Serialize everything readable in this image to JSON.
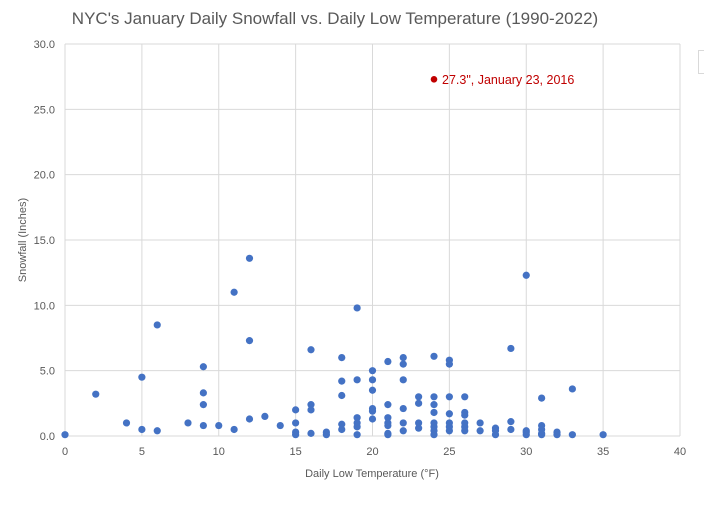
{
  "chart_data": {
    "type": "scatter",
    "title": "NYC's January Daily Snowfall vs.  Daily Low Temperature (1990-2022)",
    "xlabel": "Daily Low Temperature  (°F)",
    "ylabel": "Snowfall (Inches)",
    "xlim": [
      0,
      40
    ],
    "ylim": [
      0,
      30
    ],
    "x_ticks": [
      0,
      5,
      10,
      15,
      20,
      25,
      30,
      35,
      40
    ],
    "y_ticks": [
      0,
      5,
      10,
      15,
      20,
      25,
      30
    ],
    "x_tick_labels": [
      "0",
      "5",
      "10",
      "15",
      "20",
      "25",
      "30",
      "35",
      "40"
    ],
    "y_tick_labels": [
      "0.0",
      "5.0",
      "10.0",
      "15.0",
      "20.0",
      "25.0",
      "30.0"
    ],
    "grid": true,
    "series_color": "#4472C4",
    "points": [
      [
        0,
        0.1
      ],
      [
        2,
        3.2
      ],
      [
        4,
        1.0
      ],
      [
        5,
        4.5
      ],
      [
        5,
        0.5
      ],
      [
        6,
        8.5
      ],
      [
        6,
        0.4
      ],
      [
        8,
        1.0
      ],
      [
        9,
        5.3
      ],
      [
        9,
        3.3
      ],
      [
        9,
        2.4
      ],
      [
        9,
        0.8
      ],
      [
        10,
        0.8
      ],
      [
        11,
        11.0
      ],
      [
        11,
        0.5
      ],
      [
        12,
        13.6
      ],
      [
        12,
        7.3
      ],
      [
        12,
        1.3
      ],
      [
        13,
        1.5
      ],
      [
        14,
        0.8
      ],
      [
        15,
        2.0
      ],
      [
        15,
        1.0
      ],
      [
        15,
        0.3
      ],
      [
        15,
        0.1
      ],
      [
        16,
        6.6
      ],
      [
        16,
        2.4
      ],
      [
        16,
        2.0
      ],
      [
        16,
        0.2
      ],
      [
        17,
        0.3
      ],
      [
        17,
        0.1
      ],
      [
        18,
        6.0
      ],
      [
        18,
        4.2
      ],
      [
        18,
        3.1
      ],
      [
        18,
        0.9
      ],
      [
        18,
        0.5
      ],
      [
        19,
        9.8
      ],
      [
        19,
        4.3
      ],
      [
        19,
        1.4
      ],
      [
        19,
        1.0
      ],
      [
        19,
        0.7
      ],
      [
        19,
        0.1
      ],
      [
        20,
        5.0
      ],
      [
        20,
        4.3
      ],
      [
        20,
        3.5
      ],
      [
        20,
        2.1
      ],
      [
        20,
        1.9
      ],
      [
        20,
        1.3
      ],
      [
        21,
        5.7
      ],
      [
        21,
        2.4
      ],
      [
        21,
        1.4
      ],
      [
        21,
        1.0
      ],
      [
        21,
        0.8
      ],
      [
        21,
        0.2
      ],
      [
        21,
        0.1
      ],
      [
        22,
        6.0
      ],
      [
        22,
        5.5
      ],
      [
        22,
        4.3
      ],
      [
        22,
        2.1
      ],
      [
        22,
        1.0
      ],
      [
        22,
        0.4
      ],
      [
        23,
        3.0
      ],
      [
        23,
        2.5
      ],
      [
        23,
        1.0
      ],
      [
        23,
        0.6
      ],
      [
        24,
        6.1
      ],
      [
        24,
        3.0
      ],
      [
        24,
        2.4
      ],
      [
        24,
        1.8
      ],
      [
        24,
        1.0
      ],
      [
        24,
        0.7
      ],
      [
        24,
        0.4
      ],
      [
        24,
        0.1
      ],
      [
        25,
        5.8
      ],
      [
        25,
        5.5
      ],
      [
        25,
        3.0
      ],
      [
        25,
        1.7
      ],
      [
        25,
        1.0
      ],
      [
        25,
        0.7
      ],
      [
        25,
        0.4
      ],
      [
        26,
        3.0
      ],
      [
        26,
        1.8
      ],
      [
        26,
        1.6
      ],
      [
        26,
        1.0
      ],
      [
        26,
        0.7
      ],
      [
        26,
        0.4
      ],
      [
        27,
        1.0
      ],
      [
        27,
        0.4
      ],
      [
        28,
        0.6
      ],
      [
        28,
        0.4
      ],
      [
        28,
        0.1
      ],
      [
        29,
        6.7
      ],
      [
        29,
        1.1
      ],
      [
        29,
        0.5
      ],
      [
        30,
        12.3
      ],
      [
        30,
        0.4
      ],
      [
        30,
        0.3
      ],
      [
        30,
        0.1
      ],
      [
        31,
        2.9
      ],
      [
        31,
        0.8
      ],
      [
        31,
        0.5
      ],
      [
        31,
        0.2
      ],
      [
        31,
        0.1
      ],
      [
        32,
        0.3
      ],
      [
        32,
        0.1
      ],
      [
        33,
        3.6
      ],
      [
        33,
        0.1
      ],
      [
        35,
        0.1
      ]
    ],
    "highlight": {
      "x": 24,
      "y": 27.3,
      "label": "27.3\", January 23, 2016",
      "color": "#C00000"
    }
  }
}
